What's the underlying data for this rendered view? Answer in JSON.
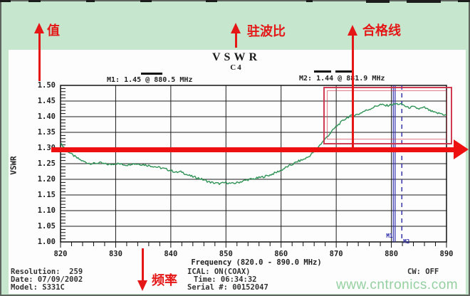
{
  "annotations": {
    "value_arrow_label": "值",
    "vswr_arrow_label": "驻波比",
    "pass_line_arrow_label": "合格线",
    "frequency_arrow_label": "频率",
    "annotation_red": "#e41616",
    "limit_line_red": "#ee1010",
    "highlight_box_red": "#cc2b44",
    "frame_green": "#c6e6ce"
  },
  "chart_data": {
    "type": "line",
    "title": "VSWR",
    "subtitle": "C4",
    "xlabel": "Frequency (820.0 - 890.0 MHz)",
    "ylabel": "VSWR",
    "xlim": [
      820,
      890
    ],
    "ylim": [
      1.0,
      1.5
    ],
    "xticks": [
      820,
      830,
      840,
      850,
      860,
      870,
      880,
      890
    ],
    "ytick_step": 0.05,
    "x_minor_step": 2,
    "y_minor_step": 0.01,
    "grid": true,
    "legend": "none",
    "line_color": "#2e9355",
    "marker_color": "#2a2aa8",
    "limit_line_value": 1.3,
    "markers": [
      {
        "id": "M1",
        "label": "M1: 1.45 @ 880.5 MHz",
        "freq_mhz": 880.5,
        "vswr": 1.45,
        "line_style": "solid"
      },
      {
        "id": "M2",
        "label": "M2: 1.44 @ 881.9 MHz",
        "freq_mhz": 881.9,
        "vswr": 1.44,
        "line_style": "dashed"
      }
    ],
    "series": [
      {
        "name": "VSWR trace",
        "x": [
          820,
          821,
          822,
          823,
          824,
          825,
          826,
          827,
          828,
          829,
          830,
          831,
          832,
          833,
          834,
          835,
          836,
          837,
          838,
          839,
          840,
          841,
          842,
          843,
          844,
          845,
          846,
          847,
          848,
          849,
          850,
          851,
          852,
          853,
          854,
          855,
          856,
          857,
          858,
          859,
          860,
          861,
          862,
          863,
          864,
          865,
          866,
          867,
          868,
          869,
          870,
          871,
          872,
          873,
          874,
          875,
          876,
          877,
          878,
          879,
          880,
          881,
          882,
          883,
          884,
          885,
          886,
          887,
          888,
          889,
          890
        ],
        "y": [
          1.315,
          1.295,
          1.28,
          1.268,
          1.258,
          1.252,
          1.25,
          1.253,
          1.249,
          1.247,
          1.251,
          1.248,
          1.246,
          1.25,
          1.249,
          1.247,
          1.244,
          1.241,
          1.237,
          1.233,
          1.228,
          1.222,
          1.224,
          1.214,
          1.208,
          1.204,
          1.198,
          1.191,
          1.188,
          1.186,
          1.19,
          1.186,
          1.189,
          1.194,
          1.199,
          1.201,
          1.205,
          1.209,
          1.214,
          1.221,
          1.229,
          1.239,
          1.247,
          1.257,
          1.263,
          1.272,
          1.289,
          1.309,
          1.329,
          1.349,
          1.369,
          1.384,
          1.398,
          1.404,
          1.408,
          1.417,
          1.424,
          1.432,
          1.439,
          1.435,
          1.438,
          1.441,
          1.439,
          1.429,
          1.431,
          1.425,
          1.429,
          1.419,
          1.412,
          1.41,
          1.404
        ]
      }
    ]
  },
  "footer": {
    "resolution": "Resolution:  259",
    "date": "Date: 07/09/2002",
    "model": "Model: S331C",
    "cal": "ICAL: ON(COAX)",
    "time": "Time: 06:34:32",
    "serial": "Serial #: 00152047",
    "cw": "CW: OFF"
  },
  "watermark": "www.cntronics.com"
}
